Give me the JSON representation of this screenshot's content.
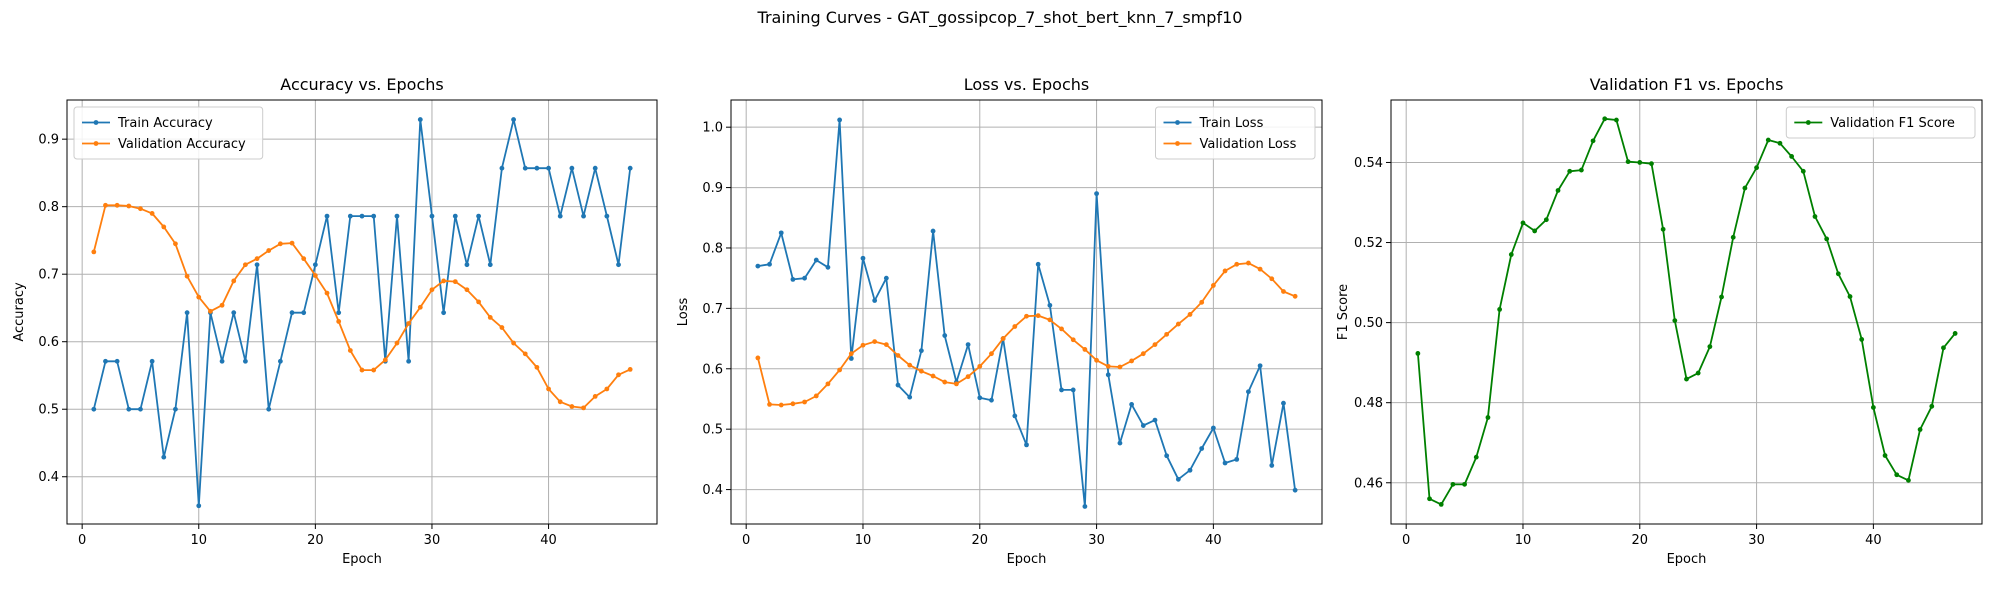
{
  "figure": {
    "suptitle": "Training Curves - GAT_gossipcop_7_shot_bert_knn_7_smpf10"
  },
  "chart_data": [
    {
      "type": "line",
      "title": "Accuracy vs. Epochs",
      "xlabel": "Epoch",
      "ylabel": "Accuracy",
      "xlim": [
        -1.3,
        49.3
      ],
      "ylim": [
        0.33,
        0.958
      ],
      "xticks": [
        0,
        10,
        20,
        30,
        40
      ],
      "yticks": [
        0.4,
        0.5,
        0.6,
        0.7,
        0.8,
        0.9
      ],
      "ytick_labels": [
        "0.4",
        "0.5",
        "0.6",
        "0.7",
        "0.8",
        "0.9"
      ],
      "grid": true,
      "legend": "upper-left",
      "x": [
        1,
        2,
        3,
        4,
        5,
        6,
        7,
        8,
        9,
        10,
        11,
        12,
        13,
        14,
        15,
        16,
        17,
        18,
        19,
        20,
        21,
        22,
        23,
        24,
        25,
        26,
        27,
        28,
        29,
        30,
        31,
        32,
        33,
        34,
        35,
        36,
        37,
        38,
        39,
        40,
        41,
        42,
        43,
        44,
        45,
        46,
        47
      ],
      "series": [
        {
          "name": "Train Accuracy",
          "color": "#1f77b4",
          "values": [
            0.5,
            0.571,
            0.571,
            0.5,
            0.5,
            0.571,
            0.429,
            0.5,
            0.643,
            0.357,
            0.643,
            0.571,
            0.643,
            0.571,
            0.714,
            0.5,
            0.571,
            0.643,
            0.643,
            0.714,
            0.786,
            0.643,
            0.786,
            0.786,
            0.786,
            0.571,
            0.786,
            0.571,
            0.929,
            0.786,
            0.643,
            0.786,
            0.714,
            0.786,
            0.714,
            0.857,
            0.929,
            0.857,
            0.857,
            0.857,
            0.786,
            0.857,
            0.786,
            0.857,
            0.786,
            0.714,
            0.857
          ]
        },
        {
          "name": "Validation Accuracy",
          "color": "#ff7f0e",
          "values": [
            0.733,
            0.802,
            0.802,
            0.801,
            0.797,
            0.79,
            0.77,
            0.745,
            0.697,
            0.666,
            0.645,
            0.654,
            0.69,
            0.714,
            0.723,
            0.735,
            0.745,
            0.746,
            0.723,
            0.698,
            0.672,
            0.63,
            0.587,
            0.558,
            0.558,
            0.573,
            0.598,
            0.627,
            0.651,
            0.677,
            0.69,
            0.689,
            0.677,
            0.659,
            0.636,
            0.621,
            0.598,
            0.582,
            0.562,
            0.53,
            0.511,
            0.504,
            0.502,
            0.519,
            0.53,
            0.551,
            0.559
          ]
        }
      ]
    },
    {
      "type": "line",
      "title": "Loss vs. Epochs",
      "xlabel": "Epoch",
      "ylabel": "Loss",
      "xlim": [
        -1.3,
        49.3
      ],
      "ylim": [
        0.343,
        1.045
      ],
      "xticks": [
        0,
        10,
        20,
        30,
        40
      ],
      "yticks": [
        0.4,
        0.5,
        0.6,
        0.7,
        0.8,
        0.9,
        1.0
      ],
      "ytick_labels": [
        "0.4",
        "0.5",
        "0.6",
        "0.7",
        "0.8",
        "0.9",
        "1.0"
      ],
      "grid": true,
      "legend": "upper-right",
      "x": [
        1,
        2,
        3,
        4,
        5,
        6,
        7,
        8,
        9,
        10,
        11,
        12,
        13,
        14,
        15,
        16,
        17,
        18,
        19,
        20,
        21,
        22,
        23,
        24,
        25,
        26,
        27,
        28,
        29,
        30,
        31,
        32,
        33,
        34,
        35,
        36,
        37,
        38,
        39,
        40,
        41,
        42,
        43,
        44,
        45,
        46,
        47
      ],
      "series": [
        {
          "name": "Train Loss",
          "color": "#1f77b4",
          "values": [
            0.77,
            0.773,
            0.825,
            0.748,
            0.75,
            0.78,
            0.768,
            1.012,
            0.617,
            0.783,
            0.713,
            0.75,
            0.573,
            0.553,
            0.63,
            0.828,
            0.655,
            0.578,
            0.64,
            0.552,
            0.548,
            0.65,
            0.522,
            0.474,
            0.773,
            0.705,
            0.565,
            0.565,
            0.372,
            0.89,
            0.59,
            0.477,
            0.541,
            0.506,
            0.515,
            0.456,
            0.417,
            0.432,
            0.468,
            0.502,
            0.444,
            0.45,
            0.562,
            0.605,
            0.44,
            0.543,
            0.399
          ]
        },
        {
          "name": "Validation Loss",
          "color": "#ff7f0e",
          "values": [
            0.618,
            0.541,
            0.54,
            0.542,
            0.545,
            0.555,
            0.575,
            0.598,
            0.625,
            0.639,
            0.645,
            0.64,
            0.622,
            0.606,
            0.596,
            0.588,
            0.578,
            0.575,
            0.587,
            0.604,
            0.625,
            0.65,
            0.67,
            0.687,
            0.688,
            0.681,
            0.666,
            0.648,
            0.632,
            0.614,
            0.604,
            0.603,
            0.613,
            0.625,
            0.64,
            0.657,
            0.674,
            0.69,
            0.71,
            0.738,
            0.762,
            0.773,
            0.775,
            0.765,
            0.749,
            0.728,
            0.72
          ]
        }
      ]
    },
    {
      "type": "line",
      "title": "Validation F1 vs. Epochs",
      "xlabel": "Epoch",
      "ylabel": "F1 Score",
      "xlim": [
        -1.3,
        49.3
      ],
      "ylim": [
        0.4497,
        0.5556
      ],
      "xticks": [
        0,
        10,
        20,
        30,
        40
      ],
      "yticks": [
        0.46,
        0.48,
        0.5,
        0.52,
        0.54
      ],
      "ytick_labels": [
        "0.46",
        "0.48",
        "0.50",
        "0.52",
        "0.54"
      ],
      "grid": true,
      "legend": "upper-right",
      "x": [
        1,
        2,
        3,
        4,
        5,
        6,
        7,
        8,
        9,
        10,
        11,
        12,
        13,
        14,
        15,
        16,
        17,
        18,
        19,
        20,
        21,
        22,
        23,
        24,
        25,
        26,
        27,
        28,
        29,
        30,
        31,
        32,
        33,
        34,
        35,
        36,
        37,
        38,
        39,
        40,
        41,
        42,
        43,
        44,
        45,
        46,
        47
      ],
      "series": [
        {
          "name": "Validation F1 Score",
          "color": "#008000",
          "values": [
            0.4923,
            0.456,
            0.4546,
            0.4596,
            0.4596,
            0.4664,
            0.4763,
            0.5033,
            0.517,
            0.5249,
            0.5229,
            0.5257,
            0.533,
            0.5378,
            0.5381,
            0.5454,
            0.5509,
            0.5506,
            0.5402,
            0.54,
            0.5397,
            0.5233,
            0.5005,
            0.4859,
            0.4874,
            0.494,
            0.5064,
            0.5213,
            0.5336,
            0.5387,
            0.5456,
            0.5448,
            0.5415,
            0.5378,
            0.5265,
            0.5209,
            0.5122,
            0.5065,
            0.4958,
            0.4788,
            0.4668,
            0.462,
            0.4606,
            0.4733,
            0.4791,
            0.4937,
            0.4973
          ]
        }
      ]
    }
  ]
}
